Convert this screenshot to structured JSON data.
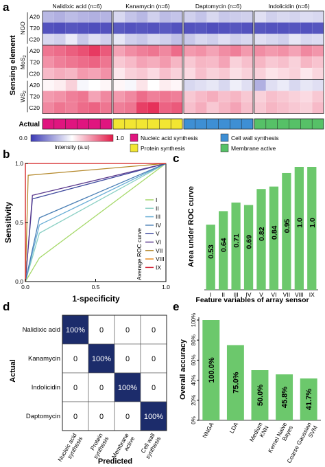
{
  "chart_data": [
    {
      "panel": "a",
      "type": "heatmap",
      "ylabel": "Sensing element",
      "groups": [
        "Nalidixic acid (n=6)",
        "Kanamycin (n=6)",
        "Daptomycin (n=6)",
        "Indolicidin (n=6)"
      ],
      "materials": [
        "NGO",
        "MoS2",
        "WS2"
      ],
      "rows": [
        "A20",
        "T20",
        "C20",
        "A20",
        "T20",
        "C20",
        "A20",
        "T20",
        "C20"
      ],
      "colorbar": {
        "min_label": "0.0",
        "max_label": "1.0",
        "label": "Intensity (a.u)"
      },
      "actual_label": "Actual",
      "classes": [
        {
          "name": "Nucleic acid synthesis",
          "color": "#e0157f"
        },
        {
          "name": "Protein synthesis",
          "color": "#f2e632"
        },
        {
          "name": "Cell wall synthesis",
          "color": "#3e8fd4"
        },
        {
          "name": "Membrane active",
          "color": "#56c167"
        }
      ],
      "actual_classes": [
        0,
        1,
        2,
        3
      ],
      "values": [
        [
          0.32,
          0.3,
          0.33,
          0.31,
          0.3,
          0.31,
          0.4,
          0.35,
          0.32,
          0.38,
          0.33,
          0.35,
          0.38,
          0.35,
          0.4,
          0.36,
          0.37,
          0.38,
          0.42,
          0.38,
          0.4,
          0.39,
          0.41,
          0.4
        ],
        [
          0.06,
          0.05,
          0.07,
          0.06,
          0.05,
          0.06,
          0.08,
          0.06,
          0.07,
          0.06,
          0.08,
          0.06,
          0.06,
          0.07,
          0.05,
          0.06,
          0.07,
          0.06,
          0.07,
          0.06,
          0.06,
          0.07,
          0.06,
          0.07
        ],
        [
          0.4,
          0.38,
          0.45,
          0.36,
          0.42,
          0.38,
          0.44,
          0.38,
          0.36,
          0.4,
          0.38,
          0.34,
          0.36,
          0.4,
          0.38,
          0.42,
          0.38,
          0.4,
          0.42,
          0.4,
          0.38,
          0.44,
          0.4,
          0.41
        ],
        [
          0.8,
          0.82,
          0.85,
          0.88,
          0.93,
          0.86,
          0.7,
          0.75,
          0.78,
          0.8,
          0.76,
          0.82,
          0.72,
          0.74,
          0.7,
          0.75,
          0.78,
          0.72,
          0.75,
          0.72,
          0.74,
          0.7,
          0.76,
          0.73
        ],
        [
          0.74,
          0.78,
          0.8,
          0.82,
          0.84,
          0.8,
          0.62,
          0.65,
          0.7,
          0.68,
          0.72,
          0.66,
          0.62,
          0.66,
          0.65,
          0.7,
          0.6,
          0.64,
          0.66,
          0.62,
          0.64,
          0.6,
          0.66,
          0.63
        ],
        [
          0.65,
          0.68,
          0.66,
          0.72,
          0.7,
          0.74,
          0.55,
          0.6,
          0.62,
          0.58,
          0.64,
          0.6,
          0.58,
          0.64,
          0.6,
          0.62,
          0.57,
          0.6,
          0.6,
          0.56,
          0.58,
          0.6,
          0.55,
          0.59
        ],
        [
          0.52,
          0.54,
          0.6,
          0.48,
          0.5,
          0.52,
          0.52,
          0.48,
          0.56,
          0.5,
          0.54,
          0.52,
          0.4,
          0.42,
          0.44,
          0.4,
          0.46,
          0.42,
          0.3,
          0.42,
          0.45,
          0.4,
          0.44,
          0.42
        ],
        [
          0.72,
          0.74,
          0.78,
          0.8,
          0.7,
          0.76,
          0.72,
          0.76,
          0.82,
          0.78,
          0.8,
          0.78,
          0.62,
          0.65,
          0.68,
          0.64,
          0.66,
          0.62,
          0.6,
          0.64,
          0.62,
          0.6,
          0.58,
          0.62
        ],
        [
          0.76,
          0.8,
          0.78,
          0.82,
          0.84,
          0.8,
          0.78,
          0.8,
          0.92,
          0.95,
          0.84,
          0.86,
          0.64,
          0.68,
          0.62,
          0.66,
          0.7,
          0.64,
          0.62,
          0.66,
          0.64,
          0.62,
          0.6,
          0.65
        ]
      ]
    },
    {
      "panel": "b",
      "type": "line",
      "xlabel": "1-specificity",
      "ylabel": "Sensitivity",
      "xlim": [
        0,
        1
      ],
      "ylim": [
        0,
        1
      ],
      "xticks": [
        "0.0",
        "0.5",
        "1.0"
      ],
      "yticks": [
        "0.0",
        "0.5",
        "1.0"
      ],
      "legend_title": "Average ROC curve",
      "legend_position": "bottom-right",
      "series": [
        {
          "name": "I",
          "color": "#a6d96a",
          "points": [
            [
              0,
              0
            ],
            [
              0.1,
              0.2
            ],
            [
              1,
              1
            ]
          ]
        },
        {
          "name": "II",
          "color": "#8bd0c4",
          "points": [
            [
              0,
              0
            ],
            [
              0.1,
              0.41
            ],
            [
              1,
              1
            ]
          ]
        },
        {
          "name": "III",
          "color": "#6aaed6",
          "points": [
            [
              0,
              0
            ],
            [
              0.1,
              0.48
            ],
            [
              1,
              1
            ]
          ]
        },
        {
          "name": "IV",
          "color": "#4a7fb5",
          "points": [
            [
              0,
              0
            ],
            [
              0.1,
              0.54
            ],
            [
              1,
              1
            ]
          ]
        },
        {
          "name": "V",
          "color": "#3f4a9e",
          "points": [
            [
              0,
              0
            ],
            [
              0.05,
              0.7
            ],
            [
              1,
              1
            ]
          ]
        },
        {
          "name": "VI",
          "color": "#5b3a8e",
          "points": [
            [
              0,
              0
            ],
            [
              0.05,
              0.73
            ],
            [
              1,
              1
            ]
          ]
        },
        {
          "name": "VII",
          "color": "#b5892c",
          "points": [
            [
              0,
              0
            ],
            [
              0.02,
              0.9
            ],
            [
              1,
              1
            ]
          ]
        },
        {
          "name": "VIII",
          "color": "#e88a1e",
          "points": [
            [
              0,
              0
            ],
            [
              0,
              1
            ],
            [
              1,
              1
            ]
          ]
        },
        {
          "name": "IX",
          "color": "#d62b3d",
          "points": [
            [
              0,
              0
            ],
            [
              0,
              1
            ],
            [
              1,
              1
            ]
          ]
        }
      ]
    },
    {
      "panel": "c",
      "type": "bar",
      "xlabel": "Feature variables of array sensor",
      "ylabel": "Area under ROC curve",
      "categories": [
        "I",
        "II",
        "III",
        "IV",
        "V",
        "VI",
        "VII",
        "VIII",
        "IX"
      ],
      "values": [
        0.53,
        0.64,
        0.71,
        0.69,
        0.82,
        0.84,
        0.95,
        1.0,
        1.0
      ],
      "value_labels": [
        "0.53",
        "0.64",
        "0.71",
        "0.69",
        "0.82",
        "0.84",
        "0.95",
        "1.0",
        "1.0"
      ],
      "ylim": [
        0,
        1
      ],
      "bar_color": "#6cc86c"
    },
    {
      "panel": "d",
      "type": "table",
      "xlabel": "Predicted",
      "ylabel": "Actual",
      "row_labels": [
        "Nalidixic acid",
        "Kanamycin",
        "Indolicidin",
        "Daptomycin"
      ],
      "col_labels": [
        "Nucleic acid synthesis",
        "Protein synthesis",
        "Membrane active",
        "Cell wall synthesis"
      ],
      "cells": [
        [
          "100%",
          "0",
          "0",
          "0"
        ],
        [
          "0",
          "100%",
          "0",
          "0"
        ],
        [
          "0",
          "0",
          "100%",
          "0"
        ],
        [
          "0",
          "0",
          "0",
          "100%"
        ]
      ],
      "highlight_color": "#1c2c6b"
    },
    {
      "panel": "e",
      "type": "bar",
      "ylabel": "Overall accuracy",
      "categories": [
        "NNGA",
        "LDA",
        "Medium KNN",
        "Kernel Naive Bayes",
        "Coarse Gaussian SVM"
      ],
      "values": [
        100.0,
        75.0,
        50.0,
        45.8,
        41.7
      ],
      "value_labels": [
        "100.0%",
        "75.0%",
        "50.0%",
        "45.8%",
        "41.7%"
      ],
      "ylim": [
        0,
        100
      ],
      "yticks": [
        "0%",
        "20%",
        "40%",
        "60%",
        "80%",
        "100%"
      ],
      "bar_color": "#6cc86c"
    }
  ],
  "panel_letters": [
    "a",
    "b",
    "c",
    "d",
    "e"
  ]
}
